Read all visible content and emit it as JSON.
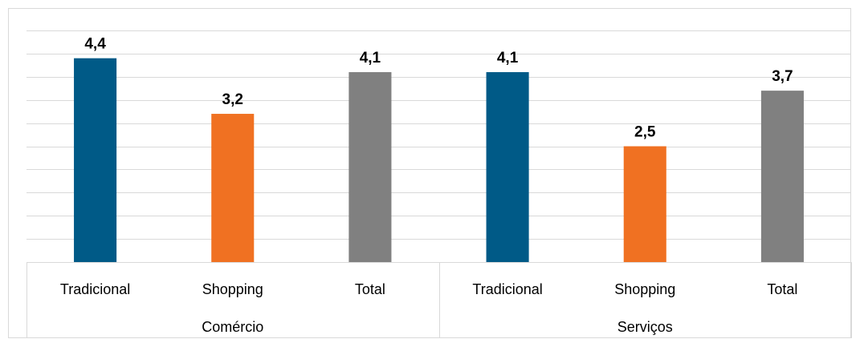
{
  "chart_data": {
    "type": "bar",
    "title": "",
    "xlabel": "",
    "ylabel": "",
    "ylim": [
      0,
      5
    ],
    "grid": true,
    "legend": "none",
    "decimal_separator": ",",
    "groups": [
      {
        "label": "Comércio",
        "categories": [
          "Tradicional",
          "Shopping",
          "Total"
        ],
        "values": [
          4.4,
          3.2,
          4.1
        ]
      },
      {
        "label": "Serviços",
        "categories": [
          "Tradicional",
          "Shopping",
          "Total"
        ],
        "values": [
          4.1,
          2.5,
          3.7
        ]
      }
    ],
    "category_colors": {
      "Tradicional": "#005a87",
      "Shopping": "#f07122",
      "Total": "#808080"
    }
  }
}
